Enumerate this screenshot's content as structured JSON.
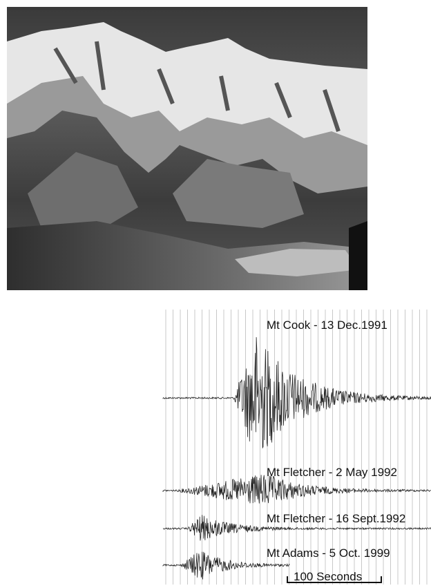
{
  "seismograms": {
    "labels": [
      "Mt Cook - 13 Dec.1991",
      "Mt Fletcher - 2 May 1992",
      "Mt Fletcher - 16 Sept.1992",
      "Mt Adams -  5 Oct. 1999"
    ],
    "scale_label": "100 Seconds"
  }
}
